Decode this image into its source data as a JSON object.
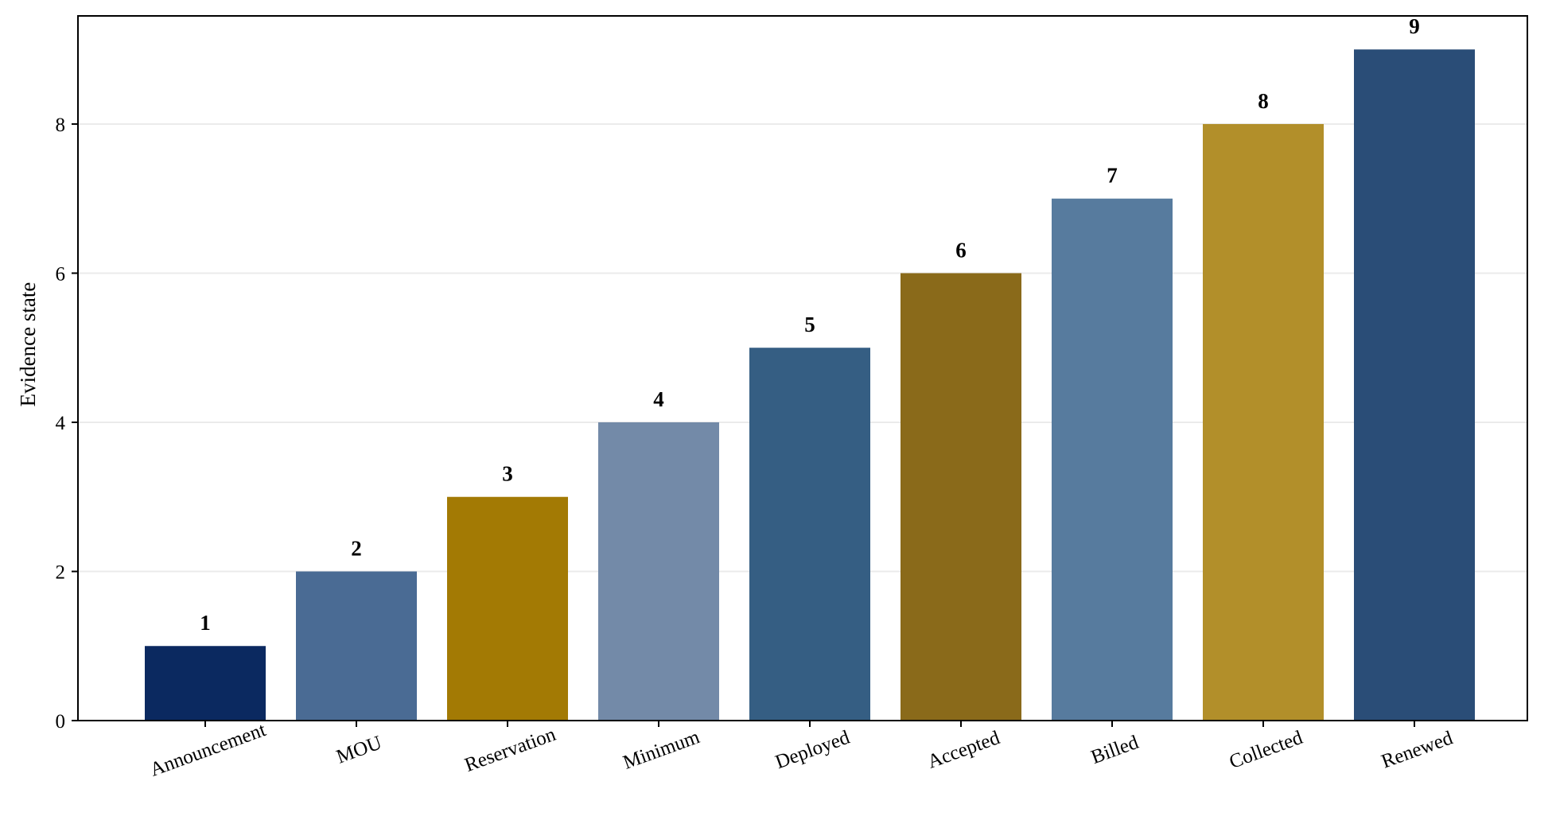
{
  "chart_data": {
    "type": "bar",
    "title": "",
    "xlabel": "",
    "ylabel": "Evidence state",
    "categories": [
      "Announcement",
      "MOU",
      "Reservation",
      "Minimum",
      "Deployed",
      "Accepted",
      "Billed",
      "Collected",
      "Renewed"
    ],
    "values": [
      1,
      2,
      3,
      4,
      5,
      6,
      7,
      8,
      9
    ],
    "data_labels": [
      "1",
      "2",
      "3",
      "4",
      "5",
      "6",
      "7",
      "8",
      "9"
    ],
    "bar_colors": [
      "#0b2960",
      "#4a6b94",
      "#a37a04",
      "#738aa8",
      "#355e83",
      "#8a6a1a",
      "#577b9e",
      "#b28f2a",
      "#2a4d77"
    ],
    "ylim": [
      0,
      9.45
    ],
    "yticks": [
      0,
      2,
      4,
      6,
      8
    ],
    "ytick_labels": [
      "0",
      "2",
      "4",
      "6",
      "8"
    ],
    "grid": "horizontal",
    "grid_color": "#ebebeb",
    "legend": "none",
    "xtick_rotation_deg": -20
  }
}
